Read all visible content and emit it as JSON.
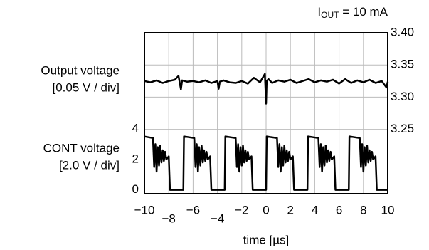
{
  "chart_data": {
    "type": "line",
    "annotation": {
      "symbol": "I",
      "subscript": "OUT",
      "text": " = 10 mA"
    },
    "ylabel": [
      "CONT voltage",
      "[2.0 V / div]"
    ],
    "y2label": [
      "Output voltage",
      "[0.05 V / div]"
    ],
    "xlabel": "time [µs]",
    "xlim": [
      -10,
      10
    ],
    "xticks": [
      {
        "value": -10,
        "label": "−10"
      },
      {
        "value": -8,
        "label": "−8"
      },
      {
        "value": -6,
        "label": "−6"
      },
      {
        "value": -4,
        "label": "−4"
      },
      {
        "value": -2,
        "label": "−2"
      },
      0,
      2,
      4,
      6,
      8,
      10
    ],
    "ylim": [
      -0.25,
      10.3
    ],
    "yticks": [
      0,
      2,
      4
    ],
    "y2lim": [
      3.15,
      3.4
    ],
    "y2ticks": [
      {
        "value": 3.4,
        "label": "3.40"
      },
      3.35,
      {
        "value": 3.3,
        "label": "3.30"
      },
      3.25
    ],
    "grid": true,
    "series": [
      {
        "name": "Output voltage",
        "axis": "y2",
        "color": "#000000",
        "x": [
          -10,
          -9.5,
          -9,
          -8.5,
          -8,
          -7.5,
          -7.2,
          -7,
          -6.9,
          -6.5,
          -6,
          -5.5,
          -5,
          -4.5,
          -4,
          -3.9,
          -3.8,
          -3.5,
          -3,
          -2.5,
          -2,
          -1.5,
          -1,
          -0.5,
          -0.1,
          0,
          0.05,
          0.2,
          0.5,
          1,
          1.5,
          2,
          2.5,
          3,
          3.5,
          4,
          4.5,
          5,
          5.5,
          6,
          6.5,
          7,
          7.5,
          8,
          8.5,
          9,
          9.5,
          9.9,
          10
        ],
        "values": [
          3.325,
          3.323,
          3.326,
          3.322,
          3.325,
          3.327,
          3.333,
          3.312,
          3.326,
          3.324,
          3.325,
          3.323,
          3.326,
          3.322,
          3.325,
          3.313,
          3.324,
          3.326,
          3.323,
          3.322,
          3.325,
          3.321,
          3.33,
          3.323,
          3.336,
          3.29,
          3.325,
          3.328,
          3.322,
          3.326,
          3.324,
          3.327,
          3.322,
          3.325,
          3.328,
          3.323,
          3.326,
          3.324,
          3.327,
          3.321,
          3.328,
          3.322,
          3.326,
          3.323,
          3.327,
          3.322,
          3.325,
          3.315,
          3.324
        ]
      },
      {
        "name": "CONT voltage",
        "axis": "y",
        "color": "#000000",
        "x": [
          -10,
          -9.3,
          -9.2,
          -9.1,
          -9.0,
          -8.9,
          -8.8,
          -8.7,
          -8.6,
          -8.5,
          -8.4,
          -8.3,
          -8.2,
          -8.0,
          -7.9,
          -6.8,
          -6.75,
          -5.9,
          -5.8,
          -5.7,
          -5.6,
          -5.5,
          -5.4,
          -5.3,
          -5.2,
          -5.1,
          -5.0,
          -4.9,
          -4.8,
          -4.6,
          -4.5,
          -3.4,
          -3.35,
          -2.5,
          -2.4,
          -2.3,
          -2.2,
          -2.1,
          -2.0,
          -1.9,
          -1.8,
          -1.7,
          -1.6,
          -1.5,
          -1.4,
          -1.2,
          -1.1,
          0,
          0.05,
          0.9,
          1.0,
          1.1,
          1.2,
          1.3,
          1.4,
          1.5,
          1.6,
          1.7,
          1.8,
          1.9,
          2.0,
          2.2,
          2.3,
          3.4,
          3.45,
          4.3,
          4.4,
          4.5,
          4.6,
          4.7,
          4.8,
          4.9,
          5.0,
          5.1,
          5.2,
          5.3,
          5.4,
          5.6,
          5.7,
          6.8,
          6.85,
          7.7,
          7.8,
          7.9,
          8.0,
          8.1,
          8.2,
          8.3,
          8.4,
          8.5,
          8.6,
          8.7,
          8.8,
          9.0,
          9.1,
          10
        ],
        "values": [
          3.5,
          3.4,
          1.5,
          3.0,
          1.2,
          2.8,
          1.6,
          2.9,
          1.8,
          2.6,
          1.9,
          2.5,
          2.0,
          2.2,
          0,
          0,
          3.5,
          3.4,
          1.5,
          3.0,
          1.2,
          2.8,
          1.6,
          2.9,
          1.8,
          2.6,
          1.9,
          2.5,
          2.0,
          2.2,
          0,
          0,
          3.5,
          3.4,
          1.5,
          3.0,
          1.2,
          2.8,
          1.6,
          2.9,
          1.8,
          2.6,
          1.9,
          2.5,
          2.0,
          2.2,
          0,
          0,
          3.5,
          3.4,
          1.5,
          3.0,
          1.2,
          2.8,
          1.6,
          2.9,
          1.8,
          2.6,
          1.9,
          2.5,
          2.0,
          2.2,
          0,
          0,
          3.5,
          3.4,
          1.5,
          3.0,
          1.2,
          2.8,
          1.6,
          2.9,
          1.8,
          2.6,
          1.9,
          2.5,
          2.0,
          2.2,
          0,
          0,
          3.5,
          3.4,
          1.5,
          3.0,
          1.2,
          2.8,
          1.6,
          2.9,
          1.8,
          2.6,
          1.9,
          2.5,
          2.0,
          2.2,
          0,
          0
        ]
      }
    ]
  }
}
